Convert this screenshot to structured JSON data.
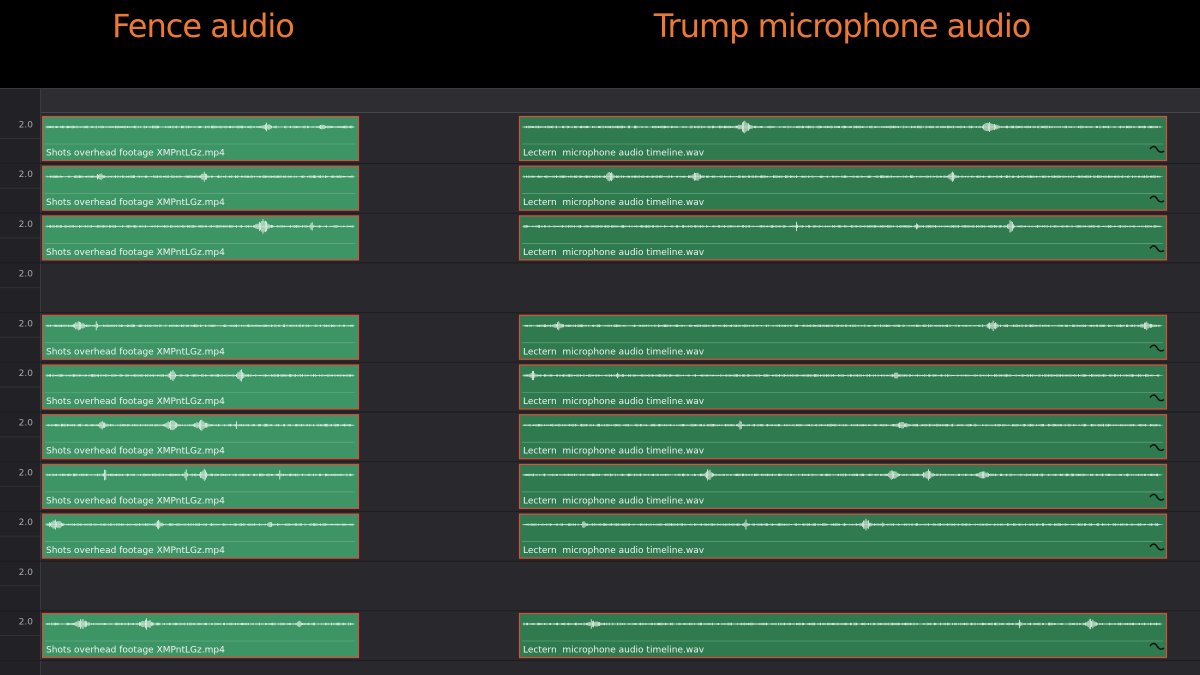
{
  "headers": {
    "fence": "Fence audio",
    "mic": "Trump microphone audio"
  },
  "tracks": [
    {
      "level": "2.0",
      "fence_clip": "Shots overhead footage XMPntLGz.mp4",
      "mic_clip": "Lectern  microphone audio timeline.wav"
    },
    {
      "level": "2.0",
      "fence_clip": "Shots overhead footage XMPntLGz.mp4",
      "mic_clip": "Lectern  microphone audio timeline.wav"
    },
    {
      "level": "2.0",
      "fence_clip": "Shots overhead footage XMPntLGz.mp4",
      "mic_clip": "Lectern  microphone audio timeline.wav"
    },
    {
      "level": "2.0"
    },
    {
      "level": "2.0",
      "fence_clip": "Shots overhead footage XMPntLGz.mp4",
      "mic_clip": "Lectern  microphone audio timeline.wav"
    },
    {
      "level": "2.0",
      "fence_clip": "Shots overhead footage XMPntLGz.mp4",
      "mic_clip": "Lectern  microphone audio timeline.wav"
    },
    {
      "level": "2.0",
      "fence_clip": "Shots overhead footage XMPntLGz.mp4",
      "mic_clip": "Lectern  microphone audio timeline.wav"
    },
    {
      "level": "2.0",
      "fence_clip": "Shots overhead footage XMPntLGz.mp4",
      "mic_clip": "Lectern  microphone audio timeline.wav"
    },
    {
      "level": "2.0",
      "fence_clip": "Shots overhead footage XMPntLGz.mp4",
      "mic_clip": "Lectern  microphone audio timeline.wav"
    },
    {
      "level": "2.0"
    },
    {
      "level": "2.0",
      "fence_clip": "Shots overhead footage XMPntLGz.mp4",
      "mic_clip": "Lectern  microphone audio timeline.wav"
    }
  ]
}
